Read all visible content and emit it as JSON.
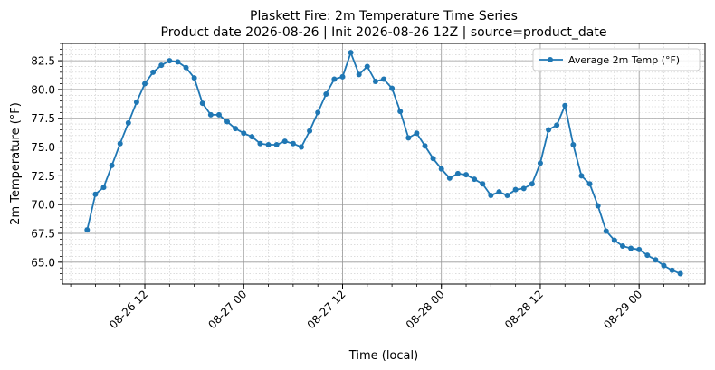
{
  "chart_data": {
    "type": "line",
    "title": "Plaskett Fire: 2m Temperature Time Series",
    "subtitle": "Product date 2026-08-26 | Init 2026-08-26 12Z | source=product_date",
    "xlabel": "Time (local)",
    "ylabel": "2m Temperature (°F)",
    "xlim": [
      "2026-08-26 02:00",
      "2026-08-29 08:00"
    ],
    "ylim": [
      63.1,
      84.0
    ],
    "x_ticks": [
      {
        "value": "2026-08-26 12:00",
        "label": "08-26 12"
      },
      {
        "value": "2026-08-27 00:00",
        "label": "08-27 00"
      },
      {
        "value": "2026-08-27 12:00",
        "label": "08-27 12"
      },
      {
        "value": "2026-08-28 00:00",
        "label": "08-28 00"
      },
      {
        "value": "2026-08-28 12:00",
        "label": "08-28 12"
      },
      {
        "value": "2026-08-29 00:00",
        "label": "08-29 00"
      }
    ],
    "y_ticks": [
      {
        "value": 65.0,
        "label": "65.0"
      },
      {
        "value": 67.5,
        "label": "67.5"
      },
      {
        "value": 70.0,
        "label": "70.0"
      },
      {
        "value": 72.5,
        "label": "72.5"
      },
      {
        "value": 75.0,
        "label": "75.0"
      },
      {
        "value": 77.5,
        "label": "77.5"
      },
      {
        "value": 80.0,
        "label": "80.0"
      },
      {
        "value": 82.5,
        "label": "82.5"
      }
    ],
    "grid": true,
    "legend": "top-right",
    "series": [
      {
        "name": "Average 2m Temp (°F)",
        "color": "#1f77b4",
        "x": [
          "2026-08-26 05:00",
          "2026-08-26 06:00",
          "2026-08-26 07:00",
          "2026-08-26 08:00",
          "2026-08-26 09:00",
          "2026-08-26 10:00",
          "2026-08-26 11:00",
          "2026-08-26 12:00",
          "2026-08-26 13:00",
          "2026-08-26 14:00",
          "2026-08-26 15:00",
          "2026-08-26 16:00",
          "2026-08-26 17:00",
          "2026-08-26 18:00",
          "2026-08-26 19:00",
          "2026-08-26 20:00",
          "2026-08-26 21:00",
          "2026-08-26 22:00",
          "2026-08-26 23:00",
          "2026-08-27 00:00",
          "2026-08-27 01:00",
          "2026-08-27 02:00",
          "2026-08-27 03:00",
          "2026-08-27 04:00",
          "2026-08-27 05:00",
          "2026-08-27 06:00",
          "2026-08-27 07:00",
          "2026-08-27 08:00",
          "2026-08-27 09:00",
          "2026-08-27 10:00",
          "2026-08-27 11:00",
          "2026-08-27 12:00",
          "2026-08-27 13:00",
          "2026-08-27 14:00",
          "2026-08-27 15:00",
          "2026-08-27 16:00",
          "2026-08-27 17:00",
          "2026-08-27 18:00",
          "2026-08-27 19:00",
          "2026-08-27 20:00",
          "2026-08-27 21:00",
          "2026-08-27 22:00",
          "2026-08-27 23:00",
          "2026-08-28 00:00",
          "2026-08-28 01:00",
          "2026-08-28 02:00",
          "2026-08-28 03:00",
          "2026-08-28 04:00",
          "2026-08-28 05:00",
          "2026-08-28 06:00",
          "2026-08-28 07:00",
          "2026-08-28 08:00",
          "2026-08-28 09:00",
          "2026-08-28 10:00",
          "2026-08-28 11:00",
          "2026-08-28 12:00",
          "2026-08-28 13:00",
          "2026-08-28 14:00",
          "2026-08-28 15:00",
          "2026-08-28 16:00",
          "2026-08-28 17:00",
          "2026-08-28 18:00",
          "2026-08-28 19:00",
          "2026-08-28 20:00",
          "2026-08-28 21:00",
          "2026-08-28 22:00",
          "2026-08-28 23:00",
          "2026-08-29 00:00",
          "2026-08-29 01:00",
          "2026-08-29 02:00",
          "2026-08-29 03:00",
          "2026-08-29 04:00",
          "2026-08-29 05:00"
        ],
        "values": [
          67.8,
          70.9,
          71.5,
          73.4,
          75.3,
          77.1,
          78.9,
          80.5,
          81.5,
          82.1,
          82.5,
          82.4,
          81.9,
          81.0,
          78.8,
          77.8,
          77.8,
          77.2,
          76.6,
          76.2,
          75.9,
          75.3,
          75.2,
          75.2,
          75.5,
          75.3,
          75.0,
          76.4,
          78.0,
          79.6,
          80.9,
          81.1,
          83.2,
          81.3,
          82.0,
          80.7,
          80.9,
          80.1,
          78.1,
          75.8,
          76.2,
          75.1,
          74.0,
          73.1,
          72.3,
          72.7,
          72.6,
          72.2,
          71.8,
          70.8,
          71.1,
          70.8,
          71.3,
          71.4,
          71.8,
          73.6,
          76.5,
          76.9,
          78.6,
          75.2,
          72.5,
          71.8,
          69.9,
          67.7,
          66.9,
          66.4,
          66.2,
          66.1,
          65.6,
          65.2,
          64.7,
          64.3,
          64.0
        ]
      }
    ]
  }
}
